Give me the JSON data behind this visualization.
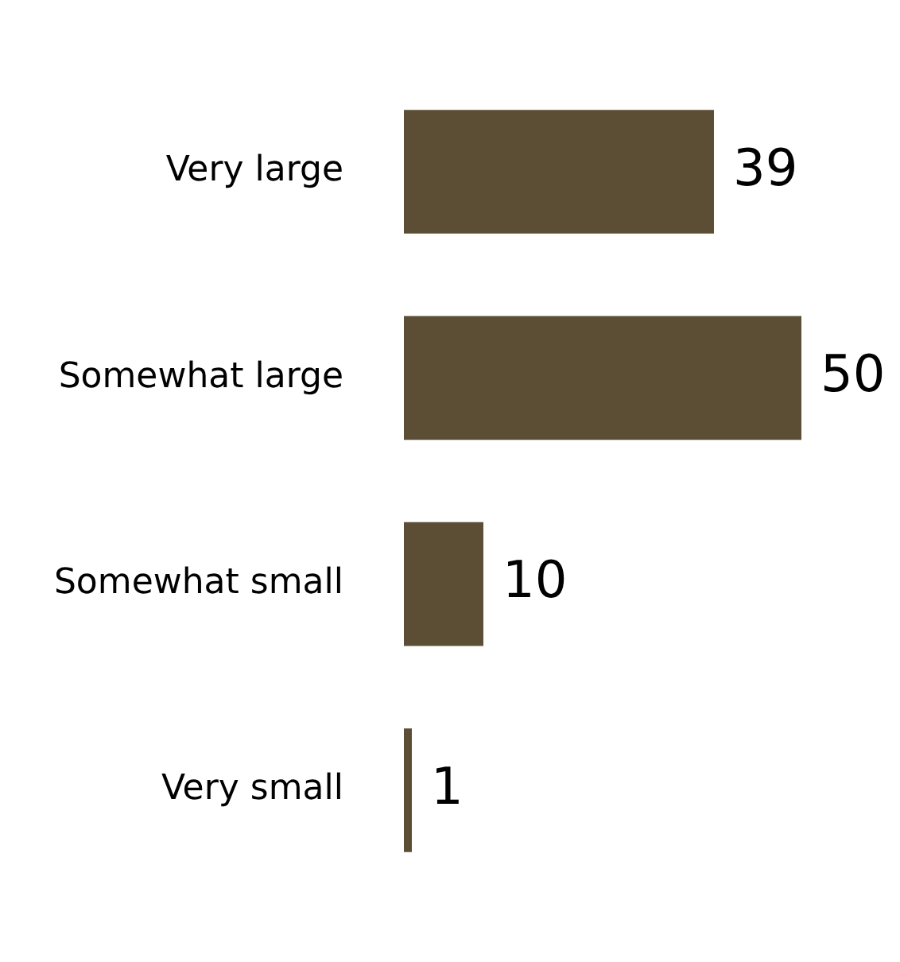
{
  "chart_data": {
    "type": "bar",
    "orientation": "horizontal",
    "categories": [
      "Very large",
      "Somewhat large",
      "Somewhat small",
      "Very small"
    ],
    "values": [
      39,
      50,
      10,
      1
    ],
    "color": "#5c4e35",
    "data_labels": true,
    "legend": false,
    "tick_labels": "y"
  }
}
